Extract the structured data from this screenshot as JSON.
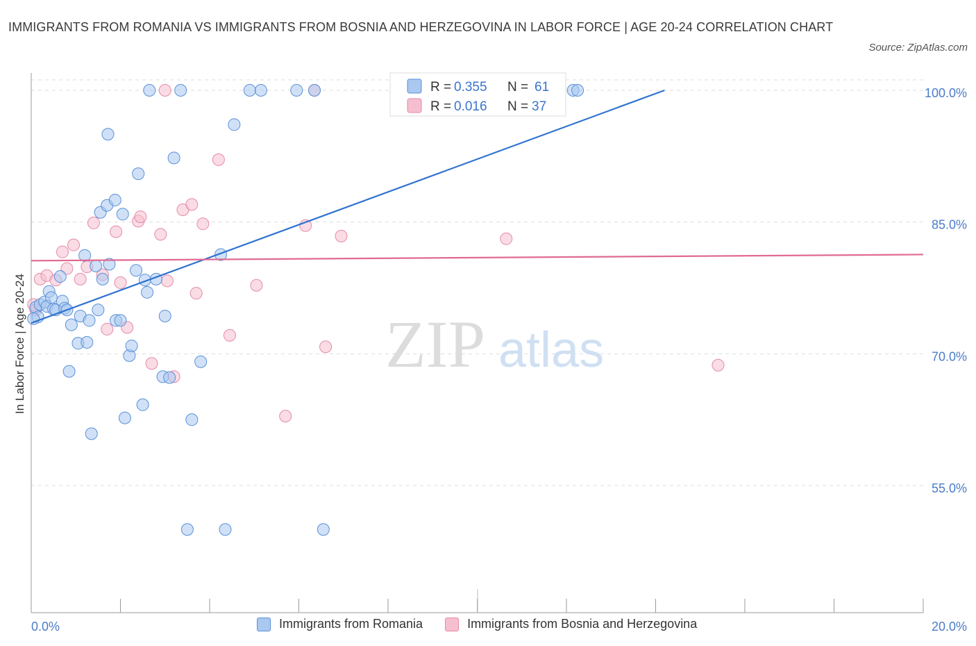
{
  "title": "IMMIGRANTS FROM ROMANIA VS IMMIGRANTS FROM BOSNIA AND HERZEGOVINA IN LABOR FORCE | AGE 20-24 CORRELATION CHART",
  "source": "Source: ZipAtlas.com",
  "watermark": {
    "zip": "ZIP",
    "atlas": "atlas"
  },
  "colors": {
    "blue_fill": "#aac8f0",
    "blue_stroke": "#5a90d8",
    "blue_line": "#2f72d0",
    "pink_fill": "#f6bfd0",
    "pink_stroke": "#e58aa8",
    "pink_line": "#e06a92",
    "tick_text": "#4a7cc9",
    "grid": "#dddddd"
  },
  "legend_top": [
    {
      "r_label": "R = ",
      "r_value": "0.355",
      "n_label": "N = ",
      "n_value": "61"
    },
    {
      "r_label": "R = ",
      "r_value": "0.016",
      "n_label": "N = ",
      "n_value": "37"
    }
  ],
  "chart_data": {
    "type": "scatter",
    "ylabel": "In Labor Force | Age 20-24",
    "xlim": [
      0,
      20
    ],
    "ylim": [
      40,
      102
    ],
    "x_tick_labels": [
      "0.0%",
      "20.0%"
    ],
    "y_ticks": [
      55,
      70,
      85,
      100
    ],
    "y_tick_labels": [
      "55.0%",
      "70.0%",
      "85.0%",
      "100.0%"
    ],
    "series": [
      {
        "name": "Immigrants from Romania",
        "color": "blue",
        "trend": {
          "x0": 0.0,
          "y0": 73.5,
          "x1": 14.2,
          "y1": 100.0
        },
        "points": [
          [
            0.1,
            75.3
          ],
          [
            0.15,
            74.2
          ],
          [
            0.2,
            75.6
          ],
          [
            0.3,
            75.9
          ],
          [
            0.35,
            75.4
          ],
          [
            0.4,
            77.1
          ],
          [
            0.45,
            76.4
          ],
          [
            0.5,
            75.1
          ],
          [
            0.55,
            75.0
          ],
          [
            0.65,
            78.8
          ],
          [
            0.7,
            76.0
          ],
          [
            0.75,
            75.2
          ],
          [
            0.8,
            75.0
          ],
          [
            0.85,
            68.0
          ],
          [
            0.9,
            73.3
          ],
          [
            1.05,
            71.2
          ],
          [
            1.1,
            74.3
          ],
          [
            1.2,
            81.2
          ],
          [
            1.25,
            71.3
          ],
          [
            1.3,
            73.8
          ],
          [
            1.35,
            60.9
          ],
          [
            1.45,
            80.0
          ],
          [
            1.5,
            75.0
          ],
          [
            1.55,
            86.1
          ],
          [
            1.6,
            78.5
          ],
          [
            1.7,
            86.9
          ],
          [
            1.72,
            95.0
          ],
          [
            1.75,
            80.2
          ],
          [
            1.88,
            87.5
          ],
          [
            1.9,
            73.8
          ],
          [
            2.0,
            73.8
          ],
          [
            2.05,
            85.9
          ],
          [
            2.1,
            62.7
          ],
          [
            2.2,
            69.8
          ],
          [
            2.25,
            70.9
          ],
          [
            2.35,
            79.5
          ],
          [
            2.4,
            90.5
          ],
          [
            2.5,
            64.2
          ],
          [
            2.55,
            78.4
          ],
          [
            2.6,
            77.0
          ],
          [
            2.65,
            100.0
          ],
          [
            2.8,
            78.5
          ],
          [
            2.95,
            67.4
          ],
          [
            3.0,
            74.3
          ],
          [
            3.1,
            67.3
          ],
          [
            3.2,
            92.3
          ],
          [
            3.35,
            100.0
          ],
          [
            3.5,
            50.0
          ],
          [
            3.6,
            62.5
          ],
          [
            3.8,
            69.1
          ],
          [
            4.25,
            81.3
          ],
          [
            4.35,
            50.0
          ],
          [
            4.55,
            96.1
          ],
          [
            4.9,
            100.0
          ],
          [
            5.15,
            100.0
          ],
          [
            5.95,
            100.0
          ],
          [
            6.35,
            100.0
          ],
          [
            6.55,
            50.0
          ],
          [
            12.15,
            100.0
          ],
          [
            12.25,
            100.0
          ],
          [
            0.05,
            74.0
          ]
        ]
      },
      {
        "name": "Immigrants from Bosnia and Herzegovina",
        "color": "pink",
        "trend": {
          "x0": 0.0,
          "y0": 80.6,
          "x1": 20.0,
          "y1": 81.3
        },
        "points": [
          [
            0.05,
            75.6
          ],
          [
            0.1,
            75.0
          ],
          [
            0.2,
            78.5
          ],
          [
            0.35,
            78.9
          ],
          [
            0.55,
            78.4
          ],
          [
            0.7,
            81.6
          ],
          [
            0.8,
            79.7
          ],
          [
            0.95,
            82.4
          ],
          [
            1.1,
            78.5
          ],
          [
            1.25,
            79.9
          ],
          [
            1.4,
            84.9
          ],
          [
            1.6,
            79.0
          ],
          [
            1.7,
            72.8
          ],
          [
            1.9,
            83.9
          ],
          [
            2.0,
            78.1
          ],
          [
            2.15,
            73.0
          ],
          [
            2.4,
            85.1
          ],
          [
            2.45,
            85.6
          ],
          [
            2.7,
            68.9
          ],
          [
            2.9,
            83.6
          ],
          [
            3.0,
            100.0
          ],
          [
            3.2,
            67.4
          ],
          [
            3.05,
            78.3
          ],
          [
            3.4,
            86.4
          ],
          [
            3.6,
            87.0
          ],
          [
            3.7,
            76.9
          ],
          [
            3.85,
            84.8
          ],
          [
            4.2,
            92.1
          ],
          [
            4.45,
            72.1
          ],
          [
            5.05,
            77.8
          ],
          [
            5.7,
            62.9
          ],
          [
            6.15,
            84.6
          ],
          [
            6.35,
            100.0
          ],
          [
            6.6,
            70.8
          ],
          [
            6.95,
            83.4
          ],
          [
            10.65,
            83.1
          ],
          [
            15.4,
            68.7
          ]
        ]
      }
    ]
  },
  "legend_bottom": [
    "Immigrants from Romania",
    "Immigrants from Bosnia and Herzegovina"
  ]
}
